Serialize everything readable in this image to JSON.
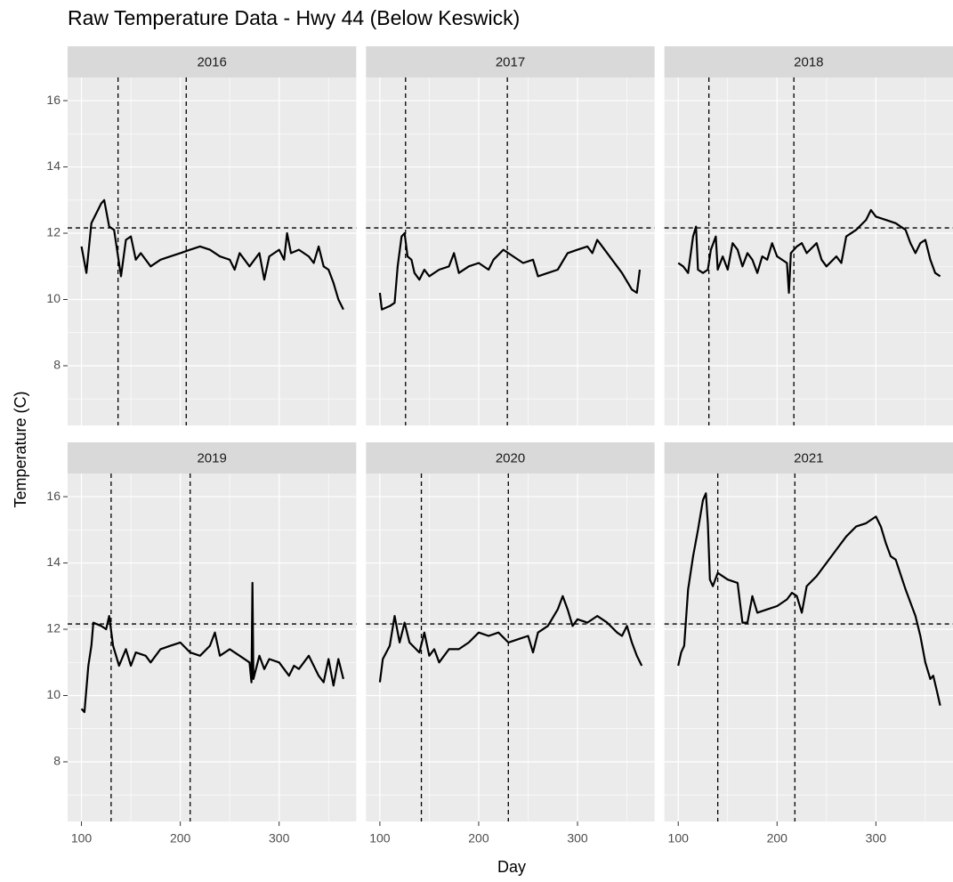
{
  "title": "Raw Temperature Data - Hwy 44 (Below Keswick)",
  "xlabel": "Day",
  "ylabel": "Temperature (C)",
  "chart_data": [
    {
      "type": "line",
      "title": "2016",
      "color": "#000000",
      "hline": 12.16,
      "vlines": [
        137,
        206
      ],
      "xlim": [
        86,
        378
      ],
      "ylim": [
        6.2,
        16.7
      ],
      "xticks": [
        100,
        200,
        300
      ],
      "yticks": [
        8,
        10,
        12,
        14,
        16
      ],
      "xminor": [
        150,
        250,
        350
      ],
      "yminor": [
        7,
        9,
        11,
        13,
        15
      ],
      "grid": true,
      "x": [
        100,
        105,
        110,
        120,
        123,
        128,
        133,
        140,
        145,
        150,
        155,
        160,
        170,
        180,
        190,
        200,
        210,
        220,
        230,
        240,
        250,
        255,
        260,
        270,
        280,
        285,
        290,
        300,
        305,
        308,
        312,
        320,
        330,
        335,
        340,
        345,
        350,
        355,
        360,
        365
      ],
      "values": [
        11.6,
        10.8,
        12.3,
        12.9,
        13.0,
        12.2,
        12.1,
        10.7,
        11.8,
        11.9,
        11.2,
        11.4,
        11.0,
        11.2,
        11.3,
        11.4,
        11.5,
        11.6,
        11.5,
        11.3,
        11.2,
        10.9,
        11.4,
        11.0,
        11.4,
        10.6,
        11.3,
        11.5,
        11.2,
        12.0,
        11.4,
        11.5,
        11.3,
        11.1,
        11.6,
        11.0,
        10.9,
        10.5,
        10.0,
        9.7
      ]
    },
    {
      "type": "line",
      "title": "2017",
      "color": "#000000",
      "hline": 12.16,
      "vlines": [
        126,
        229
      ],
      "xlim": [
        86,
        378
      ],
      "ylim": [
        6.2,
        16.7
      ],
      "xticks": [
        100,
        200,
        300
      ],
      "yticks": [
        8,
        10,
        12,
        14,
        16
      ],
      "xminor": [
        150,
        250,
        350
      ],
      "yminor": [
        7,
        9,
        11,
        13,
        15
      ],
      "grid": true,
      "x": [
        100,
        102,
        110,
        115,
        118,
        122,
        125,
        128,
        132,
        135,
        140,
        145,
        150,
        160,
        170,
        175,
        180,
        190,
        200,
        210,
        215,
        225,
        235,
        245,
        255,
        260,
        270,
        280,
        290,
        300,
        310,
        315,
        320,
        325,
        335,
        345,
        355,
        360,
        363
      ],
      "values": [
        10.2,
        9.7,
        9.8,
        9.9,
        11.0,
        11.9,
        12.0,
        11.3,
        11.2,
        10.8,
        10.6,
        10.9,
        10.7,
        10.9,
        11.0,
        11.4,
        10.8,
        11.0,
        11.1,
        10.9,
        11.2,
        11.5,
        11.3,
        11.1,
        11.2,
        10.7,
        10.8,
        10.9,
        11.4,
        11.5,
        11.6,
        11.4,
        11.8,
        11.6,
        11.2,
        10.8,
        10.3,
        10.2,
        10.9
      ]
    },
    {
      "type": "line",
      "title": "2018",
      "color": "#000000",
      "hline": 12.16,
      "vlines": [
        131,
        217
      ],
      "xlim": [
        86,
        378
      ],
      "ylim": [
        6.2,
        16.7
      ],
      "xticks": [
        100,
        200,
        300
      ],
      "yticks": [
        8,
        10,
        12,
        14,
        16
      ],
      "xminor": [
        150,
        250,
        350
      ],
      "yminor": [
        7,
        9,
        11,
        13,
        15
      ],
      "grid": true,
      "x": [
        100,
        105,
        110,
        115,
        118,
        120,
        125,
        130,
        133,
        138,
        140,
        145,
        150,
        155,
        160,
        165,
        170,
        175,
        180,
        185,
        190,
        195,
        200,
        210,
        212,
        214,
        220,
        225,
        230,
        240,
        245,
        250,
        260,
        265,
        270,
        280,
        290,
        295,
        300,
        310,
        320,
        330,
        335,
        340,
        345,
        350,
        355,
        360,
        365
      ],
      "values": [
        11.1,
        11.0,
        10.8,
        11.9,
        12.2,
        10.9,
        10.8,
        10.9,
        11.5,
        11.9,
        10.9,
        11.3,
        10.9,
        11.7,
        11.5,
        11.0,
        11.4,
        11.2,
        10.8,
        11.3,
        11.2,
        11.7,
        11.3,
        11.1,
        10.2,
        11.4,
        11.6,
        11.7,
        11.4,
        11.7,
        11.2,
        11.0,
        11.3,
        11.1,
        11.9,
        12.1,
        12.4,
        12.7,
        12.5,
        12.4,
        12.3,
        12.1,
        11.7,
        11.4,
        11.7,
        11.8,
        11.2,
        10.8,
        10.7
      ]
    },
    {
      "type": "line",
      "title": "2019",
      "color": "#000000",
      "hline": 12.16,
      "vlines": [
        130,
        210
      ],
      "xlim": [
        86,
        378
      ],
      "ylim": [
        6.2,
        16.7
      ],
      "xticks": [
        100,
        200,
        300
      ],
      "yticks": [
        8,
        10,
        12,
        14,
        16
      ],
      "xminor": [
        150,
        250,
        350
      ],
      "yminor": [
        7,
        9,
        11,
        13,
        15
      ],
      "grid": true,
      "x": [
        100,
        103,
        107,
        110,
        112,
        120,
        125,
        128,
        132,
        138,
        145,
        150,
        155,
        165,
        170,
        180,
        190,
        200,
        210,
        220,
        230,
        235,
        240,
        250,
        260,
        270,
        272,
        273,
        274,
        280,
        285,
        290,
        300,
        310,
        315,
        320,
        330,
        340,
        345,
        350,
        355,
        360,
        365
      ],
      "values": [
        9.6,
        9.5,
        10.9,
        11.5,
        12.2,
        12.1,
        12.0,
        12.4,
        11.5,
        10.9,
        11.4,
        10.9,
        11.3,
        11.2,
        11.0,
        11.4,
        11.5,
        11.6,
        11.3,
        11.2,
        11.5,
        11.9,
        11.2,
        11.4,
        11.2,
        11.0,
        10.4,
        13.4,
        10.5,
        11.2,
        10.8,
        11.1,
        11.0,
        10.6,
        10.9,
        10.8,
        11.2,
        10.6,
        10.4,
        11.1,
        10.3,
        11.1,
        10.5
      ]
    },
    {
      "type": "line",
      "title": "2020",
      "color": "#000000",
      "hline": 12.16,
      "vlines": [
        142,
        230
      ],
      "xlim": [
        86,
        378
      ],
      "ylim": [
        6.2,
        16.7
      ],
      "xticks": [
        100,
        200,
        300
      ],
      "yticks": [
        8,
        10,
        12,
        14,
        16
      ],
      "xminor": [
        150,
        250,
        350
      ],
      "yminor": [
        7,
        9,
        11,
        13,
        15
      ],
      "grid": true,
      "x": [
        100,
        103,
        110,
        115,
        120,
        125,
        130,
        140,
        145,
        150,
        155,
        160,
        170,
        180,
        190,
        200,
        210,
        220,
        230,
        240,
        250,
        255,
        260,
        270,
        280,
        285,
        290,
        295,
        300,
        310,
        320,
        330,
        340,
        345,
        350,
        355,
        360,
        365
      ],
      "values": [
        10.4,
        11.1,
        11.5,
        12.4,
        11.6,
        12.2,
        11.6,
        11.3,
        11.9,
        11.2,
        11.4,
        11.0,
        11.4,
        11.4,
        11.6,
        11.9,
        11.8,
        11.9,
        11.6,
        11.7,
        11.8,
        11.3,
        11.9,
        12.1,
        12.6,
        13.0,
        12.6,
        12.1,
        12.3,
        12.2,
        12.4,
        12.2,
        11.9,
        11.8,
        12.1,
        11.6,
        11.2,
        10.9
      ]
    },
    {
      "type": "line",
      "title": "2021",
      "color": "#000000",
      "hline": 12.16,
      "vlines": [
        140,
        218
      ],
      "xlim": [
        86,
        378
      ],
      "ylim": [
        6.2,
        16.7
      ],
      "xticks": [
        100,
        200,
        300
      ],
      "yticks": [
        8,
        10,
        12,
        14,
        16
      ],
      "xminor": [
        150,
        250,
        350
      ],
      "yminor": [
        7,
        9,
        11,
        13,
        15
      ],
      "grid": true,
      "x": [
        100,
        103,
        106,
        110,
        115,
        120,
        125,
        128,
        130,
        132,
        135,
        140,
        150,
        160,
        165,
        170,
        175,
        180,
        190,
        200,
        210,
        215,
        220,
        225,
        230,
        240,
        250,
        260,
        270,
        280,
        290,
        300,
        305,
        310,
        315,
        320,
        330,
        340,
        345,
        350,
        355,
        358,
        362,
        365
      ],
      "values": [
        10.9,
        11.3,
        11.5,
        13.2,
        14.2,
        15.0,
        15.9,
        16.1,
        15.2,
        13.5,
        13.3,
        13.7,
        13.5,
        13.4,
        12.2,
        12.2,
        13.0,
        12.5,
        12.6,
        12.7,
        12.9,
        13.1,
        13.0,
        12.5,
        13.3,
        13.6,
        14.0,
        14.4,
        14.8,
        15.1,
        15.2,
        15.4,
        15.1,
        14.6,
        14.2,
        14.1,
        13.2,
        12.4,
        11.8,
        11.0,
        10.5,
        10.6,
        10.1,
        9.7
      ]
    }
  ]
}
